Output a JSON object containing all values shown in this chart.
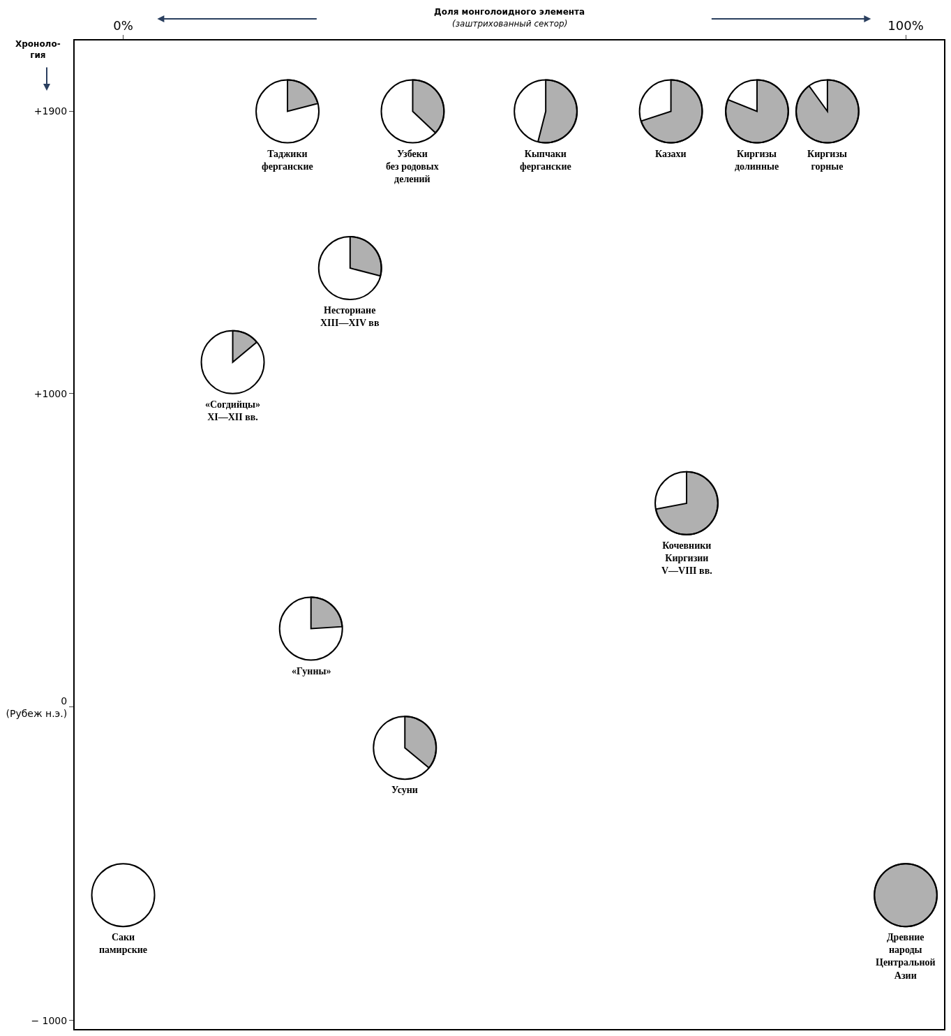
{
  "chart_data": {
    "type": "scatter",
    "title": "Доля монголоидного элемента",
    "subtitle": "(заштрихованный сектор)",
    "ylabel": "Хроноло-\nгия",
    "xlim": [
      -6.2,
      104.9
    ],
    "ylim": [
      -1027,
      2126
    ],
    "xticks": [
      {
        "value": 0,
        "label": "0%"
      },
      {
        "value": 100,
        "label": "100%"
      }
    ],
    "yticks": [
      {
        "value": 1900,
        "label": "+1900"
      },
      {
        "value": 1000,
        "label": "+1000"
      },
      {
        "value": 0,
        "label": "0\n(Рубеж н.э.)"
      },
      {
        "value": -1000,
        "label": "− 1000"
      }
    ],
    "grid": false,
    "series": [
      {
        "color": "#000000",
        "x": [
          21,
          37,
          54,
          70,
          81,
          90,
          29,
          14,
          72,
          24,
          36,
          0,
          100
        ],
        "values": [
          1900,
          1900,
          1900,
          1900,
          1900,
          1900,
          1400,
          1100,
          650,
          250,
          -130,
          -600,
          -600
        ]
      }
    ],
    "annotations": [
      "Таджики\nферганские",
      "Узбеки\nбез родовых\nделений",
      "Кыпчаки\nферганские",
      "Казахи",
      "Киргизы\nдолинные",
      "Киргизы\nгорные",
      "Несториане\nXIII—XIV вв",
      "«Согдийцы»\nXI—XII вв.",
      "Кочевники\nКиргизии\nV—VIII вв.",
      "«Гунны»",
      "Усуни",
      "Саки\nпамирские",
      "Древние\nнароды\nЦентральной\nАзии"
    ]
  }
}
